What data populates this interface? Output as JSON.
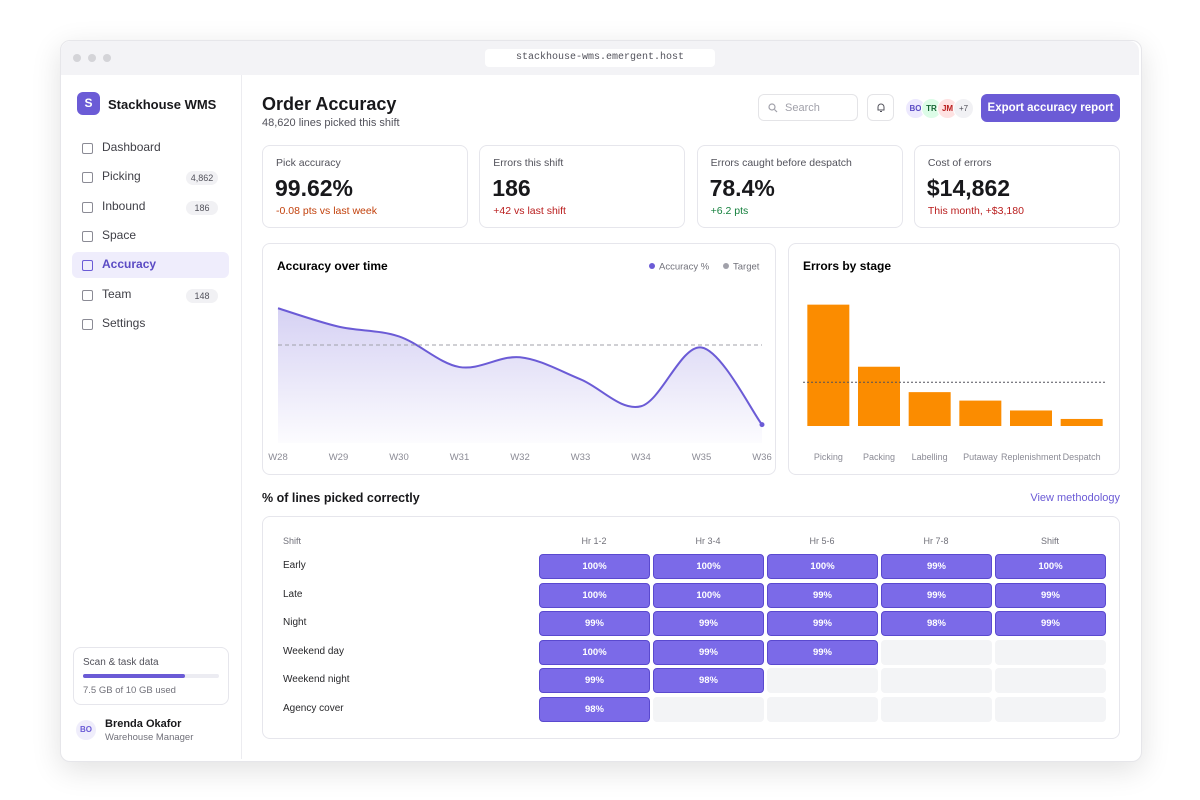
{
  "browser": {
    "url": "stackhouse-wms.emergent.host"
  },
  "sidebar": {
    "logo": "S",
    "brand": "Stackhouse WMS",
    "nav": [
      {
        "label": "Dashboard"
      },
      {
        "label": "Picking",
        "badge": "4,862"
      },
      {
        "label": "Inbound",
        "badge": "186"
      },
      {
        "label": "Space"
      },
      {
        "label": "Accuracy",
        "active": true
      },
      {
        "label": "Team",
        "badge": "148"
      },
      {
        "label": "Settings"
      }
    ],
    "storage": {
      "title": "Scan & task data",
      "used": 7.5,
      "total": 10,
      "label": "7.5 GB of 10 GB used"
    },
    "user": {
      "initials": "BO",
      "name": "Brenda Okafor",
      "role": "Warehouse Manager"
    }
  },
  "header": {
    "title": "Order Accuracy",
    "subtitle": "48,620 lines picked this shift",
    "search": "Search",
    "avatars": [
      "BO",
      "TR",
      "JM"
    ],
    "more": "+7",
    "button": "Export accuracy report"
  },
  "kpis": [
    {
      "label": "Pick accuracy",
      "value": "99.62%",
      "delta": "-0.08 pts vs last week",
      "tone": "#c2410c"
    },
    {
      "label": "Errors this shift",
      "value": "186",
      "delta": "+42 vs last shift",
      "tone": "#b91c1c"
    },
    {
      "label": "Errors caught before despatch",
      "value": "78.4%",
      "delta": "+6.2 pts",
      "tone": "#15803d"
    },
    {
      "label": "Cost of errors",
      "value": "$14,862",
      "delta": "This month, +$3,180",
      "tone": "#b91c1c"
    }
  ],
  "chart_data": [
    {
      "type": "line",
      "title": "Accuracy over time",
      "categories": [
        "W28",
        "W29",
        "W30",
        "W31",
        "W32",
        "W33",
        "W34",
        "W35",
        "W36"
      ],
      "series": [
        {
          "name": "Accuracy %",
          "color": "#6b5bd6",
          "values": [
            99.9,
            99.75,
            99.67,
            99.42,
            99.5,
            99.32,
            99.1,
            99.58,
            98.95
          ]
        },
        {
          "name": "Target",
          "color": "#a1a1aa",
          "dashed": true,
          "values": [
            99.6,
            99.6,
            99.6,
            99.6,
            99.6,
            99.6,
            99.6,
            99.6,
            99.6
          ]
        }
      ],
      "ylim": [
        98.8,
        100
      ],
      "legend": "top-right"
    },
    {
      "type": "bar",
      "title": "Errors by stage",
      "categories": [
        "Picking",
        "Packing",
        "Labelling",
        "Putaway",
        "Replenishment",
        "Despatch"
      ],
      "values": [
        86,
        42,
        24,
        18,
        11,
        5
      ],
      "color": "#fb8c00",
      "ylim": [
        0,
        90
      ],
      "reference_line": 31
    }
  ],
  "table": {
    "title": "% of lines picked correctly",
    "link": "View methodology",
    "columns": [
      "Shift",
      "Hr 1-2",
      "Hr 3-4",
      "Hr 5-6",
      "Hr 7-8",
      "Shift"
    ],
    "rows": [
      {
        "label": "Early",
        "cells": [
          "100%",
          "100%",
          "100%",
          "99%",
          "100%"
        ]
      },
      {
        "label": "Late",
        "cells": [
          "100%",
          "100%",
          "99%",
          "99%",
          "99%"
        ]
      },
      {
        "label": "Night",
        "cells": [
          "99%",
          "99%",
          "99%",
          "98%",
          "99%"
        ]
      },
      {
        "label": "Weekend day",
        "cells": [
          "100%",
          "99%",
          "99%",
          null,
          null
        ]
      },
      {
        "label": "Weekend night",
        "cells": [
          "99%",
          "98%",
          null,
          null,
          null
        ]
      },
      {
        "label": "Agency cover",
        "cells": [
          "98%",
          null,
          null,
          null,
          null
        ]
      }
    ]
  }
}
